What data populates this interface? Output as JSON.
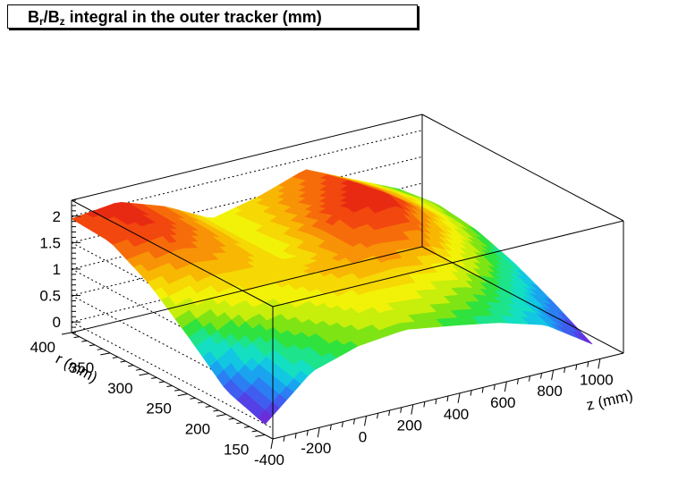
{
  "chart_data": {
    "type": "surface-3d",
    "title": {
      "prefix": "B",
      "sub1": "r",
      "mid": "/B",
      "sub2": "z",
      "suffix": " integral in the outer tracker (mm)"
    },
    "xlabel": "z (mm)",
    "ylabel": "r (mm)",
    "x_range": [
      -400,
      1100
    ],
    "y_range": [
      140,
      400
    ],
    "z_range": [
      -0.2,
      2.3
    ],
    "x_ticks": [
      "-400",
      "-200",
      "0",
      "200",
      "400",
      "600",
      "800",
      "1000"
    ],
    "y_ticks": [
      "150",
      "200",
      "250",
      "300",
      "350",
      "400"
    ],
    "z_ticks": [
      "0",
      "0.5",
      "1",
      "1.5",
      "2"
    ],
    "grid": true,
    "palette": [
      "#6a2ed8",
      "#5540e6",
      "#3f5ef0",
      "#2b7ff3",
      "#1aa4ef",
      "#13c7e3",
      "#14dfc2",
      "#1de48a",
      "#30e23d",
      "#7fe414",
      "#c8ee0c",
      "#f2f208",
      "#f6d804",
      "#f8b702",
      "#f89206",
      "#f66c0a",
      "#f2470e",
      "#e82a12"
    ],
    "surface": {
      "x": [
        -400,
        -200,
        0,
        200,
        400,
        600,
        800,
        1000
      ],
      "y": [
        150,
        200,
        250,
        300,
        350,
        400
      ],
      "values": [
        [
          0.0,
          0.78,
          1.05,
          1.14,
          1.0,
          0.84,
          0.58,
          0.0
        ],
        [
          0.25,
          0.95,
          1.2,
          1.4,
          1.35,
          1.2,
          0.88,
          0.4
        ],
        [
          0.9,
          1.3,
          1.4,
          1.6,
          1.8,
          1.7,
          1.25,
          0.75
        ],
        [
          1.5,
          1.65,
          1.55,
          1.35,
          1.95,
          2.15,
          1.55,
          1.0
        ],
        [
          1.9,
          2.0,
          1.7,
          1.3,
          1.7,
          2.0,
          1.55,
          1.1
        ],
        [
          1.95,
          2.05,
          1.75,
          1.3,
          1.5,
          1.8,
          1.4,
          1.0
        ]
      ]
    }
  }
}
